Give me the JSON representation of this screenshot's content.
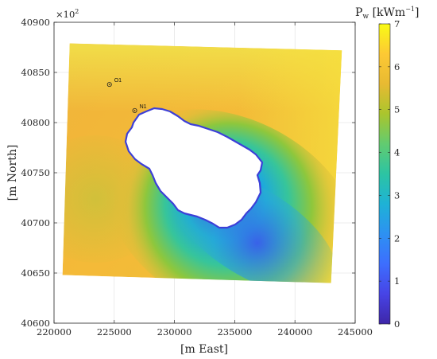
{
  "chart_data": {
    "type": "heatmap",
    "title": "",
    "xlabel": "[m East]",
    "ylabel": "[m North]",
    "xlim": [
      220000,
      245000
    ],
    "ylim": [
      40600,
      40900
    ],
    "y_exponent_label": "×10",
    "y_exponent_power": "2",
    "x_ticks": [
      "220000",
      "225000",
      "230000",
      "235000",
      "240000",
      "245000"
    ],
    "y_ticks": [
      "40600",
      "40650",
      "40700",
      "40750",
      "40800",
      "40850",
      "40900"
    ],
    "grid": true,
    "colorbar": {
      "label_main": "P",
      "label_sub": "w",
      "label_unit": " [kWm",
      "label_power": "−1",
      "label_close": "]",
      "range": [
        0,
        7
      ],
      "ticks": [
        "0",
        "1",
        "2",
        "3",
        "4",
        "5",
        "6",
        "7"
      ],
      "colors": [
        "#3e26a8",
        "#4744e6",
        "#3d6efe",
        "#2d91f2",
        "#1eb2d6",
        "#2cc4a3",
        "#62cb70",
        "#aac52d",
        "#e8ba32",
        "#fdc934",
        "#f9fb15"
      ]
    },
    "domain_corners": [
      [
        221300,
        40879
      ],
      [
        243900,
        40872
      ],
      [
        243000,
        40640
      ],
      [
        220700,
        40648
      ]
    ],
    "points": [
      {
        "label": "O1",
        "x": 224600,
        "y": 40838
      },
      {
        "label": "N1",
        "x": 226700,
        "y": 40812
      }
    ]
  }
}
